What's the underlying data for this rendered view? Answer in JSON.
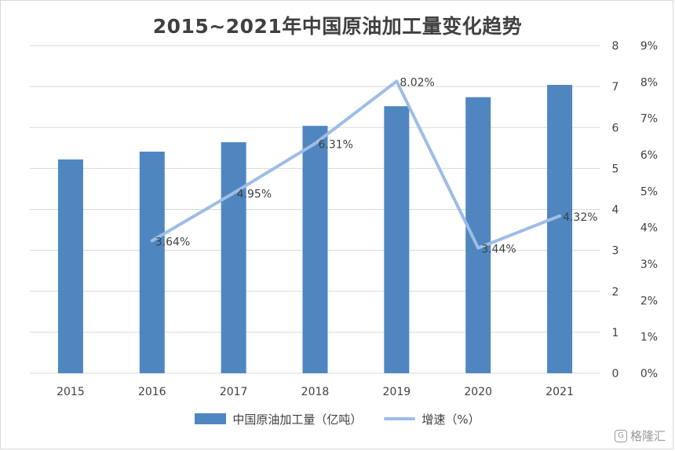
{
  "chart_data": {
    "type": "bar",
    "title": "2015~2021年中国原油加工量变化趋势",
    "categories": [
      "2015",
      "2016",
      "2017",
      "2018",
      "2019",
      "2020",
      "2021"
    ],
    "series": [
      {
        "name": "中国原油加工量（亿吨）",
        "type": "bar",
        "axis": "left",
        "values": [
          5.22,
          5.41,
          5.64,
          6.04,
          6.52,
          6.74,
          7.04
        ],
        "color": "#4f86c0"
      },
      {
        "name": "增速（%）",
        "type": "line",
        "axis": "right",
        "x": [
          "2016",
          "2017",
          "2018",
          "2019",
          "2020",
          "2021"
        ],
        "values": [
          3.64,
          4.95,
          6.31,
          8.02,
          3.44,
          4.32
        ],
        "labels": [
          "3.64%",
          "4.95%",
          "6.31%",
          "8.02%",
          "3.44%",
          "4.32%"
        ],
        "color": "#9dbde6"
      }
    ],
    "left_axis": {
      "ylim": [
        0,
        8
      ],
      "ticks": [
        "0",
        "1",
        "2",
        "3",
        "4",
        "5",
        "6",
        "7",
        "8"
      ]
    },
    "right_axis": {
      "ylim": [
        0,
        9
      ],
      "ticks": [
        "0%",
        "1%",
        "2%",
        "3%",
        "4%",
        "5%",
        "6%",
        "7%",
        "8%",
        "9%"
      ]
    },
    "grid": true,
    "legend_position": "bottom"
  },
  "legend": {
    "bar_label": "中国原油加工量（亿吨）",
    "line_label": "增速（%）"
  },
  "watermark": {
    "text": "格隆汇",
    "icon": "gelonghui-logo-icon"
  },
  "colors": {
    "bar": "#4f86c0",
    "line": "#9dbde6",
    "grid": "#d9d9d9",
    "text": "#404040"
  }
}
